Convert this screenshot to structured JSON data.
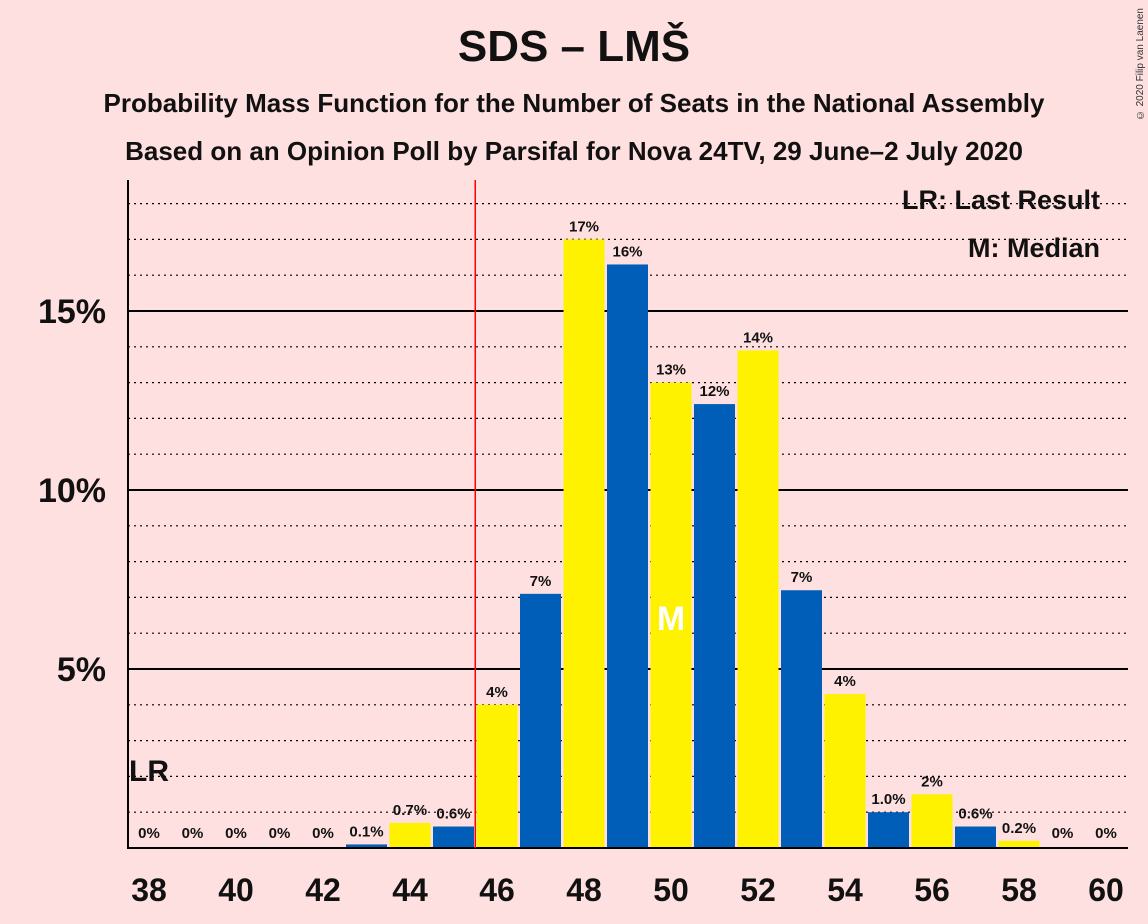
{
  "title": "SDS – LMŠ",
  "subtitle1": "Probability Mass Function for the Number of Seats in the National Assembly",
  "subtitle2": "Based on an Opinion Poll by Parsifal for Nova 24TV, 29 June–2 July 2020",
  "copyright": "© 2020 Filip van Laenen",
  "legend": {
    "last_result": "LR: Last Result",
    "median": "M: Median"
  },
  "markers": {
    "last_result_label": "LR",
    "last_result_seat": 38,
    "median_label": "M",
    "median_seat": 50,
    "majority_line_after_seat": 45
  },
  "colors": {
    "background": "#FFE0E0",
    "bar_yellow": "#FFF200",
    "bar_blue": "#005EB8",
    "majority_line": "#FF0000"
  },
  "chart_data": {
    "type": "bar",
    "x": [
      38,
      39,
      40,
      41,
      42,
      43,
      44,
      45,
      46,
      47,
      48,
      49,
      50,
      51,
      52,
      53,
      54,
      55,
      56,
      57,
      58,
      59,
      60
    ],
    "values": [
      0,
      0,
      0,
      0,
      0,
      0.1,
      0.7,
      0.6,
      4.0,
      7.1,
      17.0,
      16.3,
      13.0,
      12.4,
      13.9,
      7.2,
      4.3,
      1.0,
      1.5,
      0.6,
      0.2,
      0,
      0
    ],
    "labels": [
      "0%",
      "0%",
      "0%",
      "0%",
      "0%",
      "0.1%",
      "0.7%",
      "0.6%",
      "4%",
      "7%",
      "17%",
      "16%",
      "13%",
      "12%",
      "14%",
      "7%",
      "4%",
      "1.0%",
      "2%",
      "0.6%",
      "0.2%",
      "0%",
      "0%"
    ],
    "x_tick_labels": [
      "38",
      "40",
      "42",
      "44",
      "46",
      "48",
      "50",
      "52",
      "54",
      "56",
      "58",
      "60"
    ],
    "y_tick_labels": [
      "5%",
      "10%",
      "15%"
    ],
    "y_ticks": [
      5,
      10,
      15
    ],
    "ylim": [
      0,
      18.5
    ],
    "grid": "dotted minor every 1%, solid major every 5%",
    "legend_position": "top-right"
  }
}
